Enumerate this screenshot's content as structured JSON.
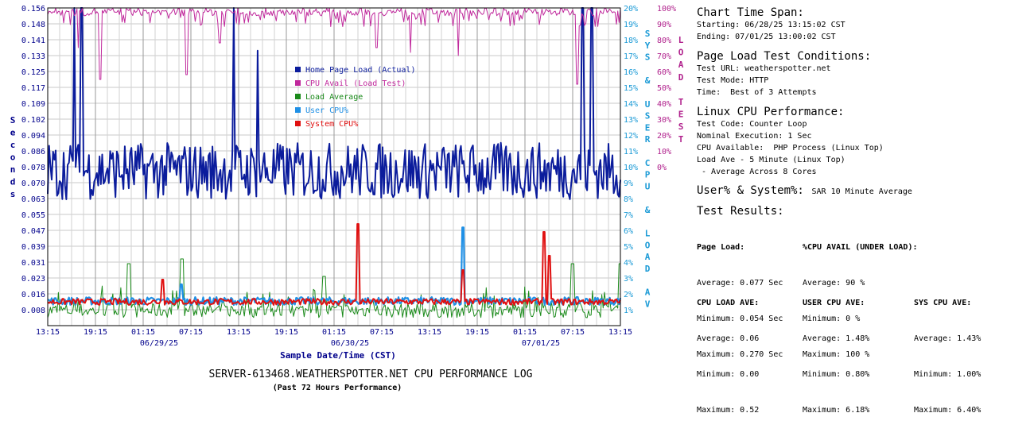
{
  "chart_data": {
    "type": "line",
    "title": "SERVER-613468.WEATHERSPOTTER.NET CPU PERFORMANCE LOG",
    "subtitle": "(Past 72 Hours Performance)",
    "xlabel": "Sample Date/Time (CST)",
    "ylabel": "Seconds",
    "ylabel_right_inner": "SYS & USER CPU & LOAD AV",
    "ylabel_right_outer": "LOAD TEST",
    "x_ticks": [
      "13:15",
      "19:15",
      "01:15",
      "07:15",
      "13:15",
      "19:15",
      "01:15",
      "07:15",
      "13:15",
      "19:15",
      "01:15",
      "07:15",
      "13:15"
    ],
    "x_dates": [
      "06/29/25",
      "06/30/25",
      "07/01/25"
    ],
    "y_ticks_left": [
      "0.156",
      "0.148",
      "0.141",
      "0.133",
      "0.125",
      "0.117",
      "0.109",
      "0.102",
      "0.094",
      "0.086",
      "0.078",
      "0.070",
      "0.063",
      "0.055",
      "0.047",
      "0.039",
      "0.031",
      "0.023",
      "0.016",
      "0.008"
    ],
    "y_ticks_right_inner": [
      "20%",
      "19%",
      "18%",
      "17%",
      "16%",
      "15%",
      "14%",
      "13%",
      "12%",
      "11%",
      "10%",
      "9%",
      "8%",
      "7%",
      "6%",
      "5%",
      "4%",
      "3%",
      "2%",
      "1%"
    ],
    "y_ticks_right_outer": [
      "100%",
      "90%",
      "80%",
      "70%",
      "60%",
      "50%",
      "40%",
      "30%",
      "20%",
      "10%",
      "0%"
    ],
    "ylim_left": [
      0,
      0.156
    ],
    "ylim_right_inner": [
      0,
      20
    ],
    "ylim_right_outer": [
      0,
      100
    ],
    "grid": true,
    "legend_position": "center",
    "series": [
      {
        "name": "Home Page Load (Actual)",
        "color": "#0b1c9c",
        "axis": "left",
        "peaks": [
          [
            0.28,
            0.156
          ],
          [
            0.35,
            0.156
          ],
          [
            1.95,
            0.156
          ],
          [
            2.2,
            0.135
          ],
          [
            5.6,
            0.156
          ],
          [
            5.7,
            0.156
          ]
        ]
      },
      {
        "name": "CPU Avail (Load Test)",
        "color": "#c0289c",
        "axis": "right_outer",
        "dips": [
          [
            0.32,
            75
          ],
          [
            0.55,
            55
          ],
          [
            1.45,
            58
          ],
          [
            1.8,
            78
          ],
          [
            3.45,
            75
          ],
          [
            3.8,
            72
          ],
          [
            4.3,
            70
          ],
          [
            5.55,
            52
          ]
        ]
      },
      {
        "name": "Load Average",
        "color": "#1a8a1a",
        "axis": "right_inner",
        "peaks": [
          [
            0.85,
            3.9
          ],
          [
            1.4,
            4.2
          ],
          [
            2.9,
            3.1
          ],
          [
            3.4,
            1.5
          ],
          [
            5.5,
            3.9
          ],
          [
            6.0,
            3.9
          ]
        ]
      },
      {
        "name": "User CPU%",
        "color": "#1f90e6",
        "axis": "right_inner",
        "peaks": [
          [
            4.35,
            6.18
          ],
          [
            1.4,
            2.6
          ]
        ]
      },
      {
        "name": "System CPU%",
        "color": "#e01010",
        "axis": "right_inner",
        "peaks": [
          [
            1.2,
            2.9
          ],
          [
            3.25,
            6.4
          ],
          [
            4.35,
            3.5
          ],
          [
            5.2,
            5.9
          ],
          [
            5.25,
            4.4
          ]
        ]
      }
    ],
    "summary": {
      "page_load": {
        "average": 0.077,
        "minimum": 0.054,
        "maximum": 0.27
      },
      "cpu_avail_under_load_pct": {
        "average": 90,
        "minimum": 0,
        "maximum": 100
      },
      "cpu_load_ave": {
        "average": 0.06,
        "minimum": 0.0,
        "maximum": 0.52
      },
      "user_cpu_ave_pct": {
        "average": 1.48,
        "minimum": 0.8,
        "maximum": 6.18
      },
      "sys_cpu_ave_pct": {
        "average": 1.43,
        "minimum": 1.0,
        "maximum": 6.4
      }
    }
  },
  "panel": {
    "timespan": {
      "heading": "Chart Time Span:",
      "starting": "Starting: 06/28/25 13:15:02 CST",
      "ending": "Ending: 07/01/25 13:00:02 CST"
    },
    "conditions": {
      "heading": "Page Load Test Conditions:",
      "url": "Test URL: weatherspotter.net",
      "mode": "Test Mode: HTTP",
      "time": "Time:  Best of 3 Attempts"
    },
    "linux": {
      "heading": "Linux CPU Performance:",
      "code": "Test Code: Counter Loop",
      "nominal": "Nominal Execution: 1 Sec",
      "available": "CPU Available:  PHP Process (Linux Top)",
      "loadave": "Load Ave - 5 Minute (Linux Top)",
      "across": " - Average Across 8 Cores"
    },
    "usersys": {
      "heading": "User% & System%:",
      "note": "SAR 10 Minute Average"
    },
    "results": {
      "heading": "Test Results:",
      "page_load": {
        "title": "Page Load:",
        "avg": "Average: 0.077 Sec",
        "min": "Minimum: 0.054 Sec",
        "max": "Maximum: 0.270 Sec"
      },
      "cpu_avail": {
        "title": "%CPU AVAIL (UNDER LOAD):",
        "avg": "Average: 90 %",
        "min": "Minimum: 0 %",
        "max": "Maximum: 100 %"
      },
      "cpu_load": {
        "title": "CPU LOAD AVE:",
        "avg": "Average: 0.06",
        "min": "Minimum: 0.00",
        "max": "Maximum: 0.52"
      },
      "user_cpu": {
        "title": "USER CPU AVE:",
        "avg": "Average: 1.48%",
        "min": "Minimum: 0.80%",
        "max": "Maximum: 6.18%"
      },
      "sys_cpu": {
        "title": "SYS CPU AVE:",
        "avg": "Average: 1.43%",
        "min": "Minimum: 1.00%",
        "max": "Maximum: 6.40%"
      }
    }
  }
}
